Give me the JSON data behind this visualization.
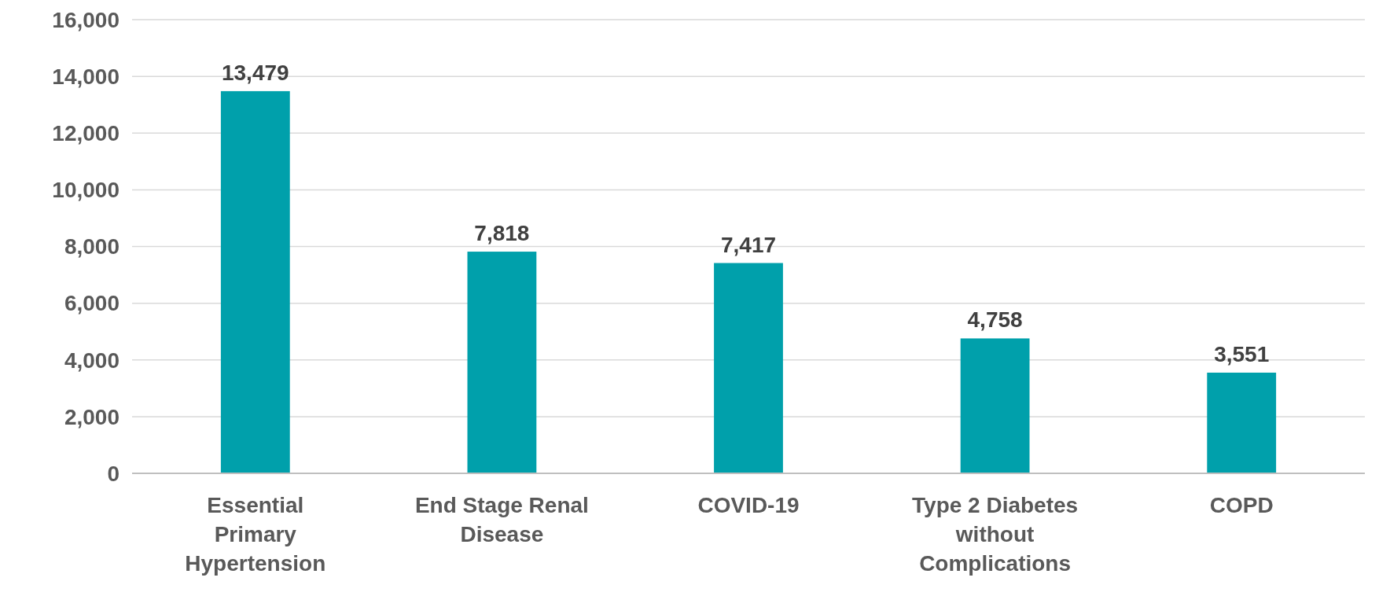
{
  "chart_data": {
    "type": "bar",
    "categories": [
      "Essential Primary Hypertension",
      "End Stage Renal Disease",
      "COVID-19",
      "Type 2 Diabetes without Complications",
      "COPD"
    ],
    "values": [
      13479,
      7818,
      7417,
      4758,
      3551
    ],
    "color": "#00a0ab",
    "ylim": [
      0,
      16000
    ],
    "yticks": [
      {
        "value": 0,
        "label": "0"
      },
      {
        "value": 2000,
        "label": "2,000"
      },
      {
        "value": 4000,
        "label": "4,000"
      },
      {
        "value": 6000,
        "label": "6,000"
      },
      {
        "value": 8000,
        "label": "8,000"
      },
      {
        "value": 10000,
        "label": "10,000"
      },
      {
        "value": 12000,
        "label": "12,000"
      },
      {
        "value": 14000,
        "label": "14,000"
      },
      {
        "value": 16000,
        "label": "16,000"
      }
    ],
    "grid": "y",
    "value_labels": [
      "13,479",
      "7,818",
      "7,417",
      "4,758",
      "3,551"
    ]
  }
}
